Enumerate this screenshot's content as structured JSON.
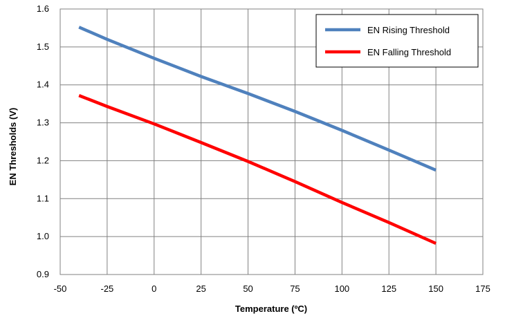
{
  "chart_data": {
    "type": "line",
    "title": "",
    "xlabel": "Temperature (ºC)",
    "ylabel": "EN Thresholds (V)",
    "xlim": [
      -50,
      175
    ],
    "ylim": [
      0.9,
      1.6
    ],
    "x_ticks": [
      -50,
      -25,
      0,
      25,
      50,
      75,
      100,
      125,
      150,
      175
    ],
    "y_ticks": [
      0.9,
      1.0,
      1.1,
      1.2,
      1.3,
      1.4,
      1.5,
      1.6
    ],
    "x_tick_labels": [
      "-50",
      "-25",
      "0",
      "25",
      "50",
      "75",
      "100",
      "125",
      "150",
      "175"
    ],
    "y_tick_labels": [
      "0.9",
      "1.0",
      "1.1",
      "1.2",
      "1.3",
      "1.4",
      "1.5",
      "1.6"
    ],
    "grid": true,
    "legend_position": "top-right",
    "series": [
      {
        "name": "EN Rising Threshold",
        "color": "#4f81bd",
        "x": [
          -40,
          -25,
          0,
          25,
          50,
          75,
          100,
          125,
          150
        ],
        "y": [
          1.552,
          1.52,
          1.47,
          1.422,
          1.377,
          1.33,
          1.28,
          1.228,
          1.175
        ]
      },
      {
        "name": "EN Falling Threshold",
        "color": "#ff0000",
        "x": [
          -40,
          -25,
          0,
          25,
          50,
          75,
          100,
          125,
          150
        ],
        "y": [
          1.372,
          1.343,
          1.297,
          1.248,
          1.198,
          1.145,
          1.09,
          1.037,
          0.982
        ]
      }
    ]
  }
}
